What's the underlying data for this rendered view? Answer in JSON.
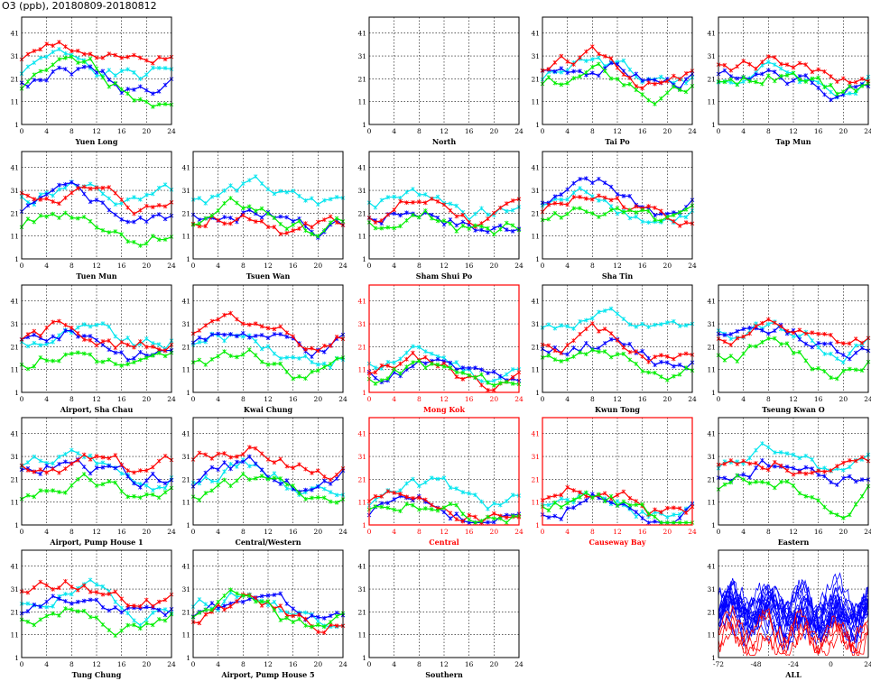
{
  "figure_title": "O3 (ppb), 20180809-20180812",
  "chart_data": {
    "type": "line",
    "grid": true,
    "y_tick_labels": [
      "1",
      "11",
      "21",
      "31",
      "41"
    ],
    "x_tick_labels": [
      "0",
      "4",
      "8",
      "12",
      "16",
      "20",
      "24"
    ],
    "all_x_tick_labels": [
      "-72",
      "-48",
      "-24",
      "0",
      "24"
    ],
    "series_colors": [
      "#00e5ee",
      "#0000ff",
      "#ff0000",
      "#00ee00"
    ],
    "panels": [
      {
        "id": "yuen-long",
        "label": "Yuen Long",
        "row": 0,
        "col": 0,
        "highlight": false,
        "has_data": true,
        "seed": 1
      },
      {
        "id": "north",
        "label": "North",
        "row": 0,
        "col": 2,
        "highlight": false,
        "has_data": false,
        "seed": 2
      },
      {
        "id": "tai-po",
        "label": "Tai Po",
        "row": 0,
        "col": 3,
        "highlight": false,
        "has_data": true,
        "seed": 3
      },
      {
        "id": "tap-mun",
        "label": "Tap Mun",
        "row": 0,
        "col": 4,
        "highlight": false,
        "has_data": true,
        "seed": 4
      },
      {
        "id": "tuen-mun",
        "label": "Tuen Mun",
        "row": 1,
        "col": 0,
        "highlight": false,
        "has_data": true,
        "seed": 5
      },
      {
        "id": "tsuen-wan",
        "label": "Tsuen Wan",
        "row": 1,
        "col": 1,
        "highlight": false,
        "has_data": true,
        "seed": 6
      },
      {
        "id": "sham-shui-po",
        "label": "Sham Shui Po",
        "row": 1,
        "col": 2,
        "highlight": false,
        "has_data": true,
        "seed": 7
      },
      {
        "id": "sha-tin",
        "label": "Sha Tin",
        "row": 1,
        "col": 3,
        "highlight": false,
        "has_data": true,
        "seed": 8
      },
      {
        "id": "airport-sha-chau",
        "label": "Airport, Sha Chau",
        "row": 2,
        "col": 0,
        "highlight": false,
        "has_data": true,
        "seed": 9
      },
      {
        "id": "kwai-chung",
        "label": "Kwai Chung",
        "row": 2,
        "col": 1,
        "highlight": false,
        "has_data": true,
        "seed": 10
      },
      {
        "id": "mong-kok",
        "label": "Mong Kok",
        "row": 2,
        "col": 2,
        "highlight": true,
        "has_data": true,
        "seed": 11
      },
      {
        "id": "kwun-tong",
        "label": "Kwun Tong",
        "row": 2,
        "col": 3,
        "highlight": false,
        "has_data": true,
        "seed": 12
      },
      {
        "id": "tseung-kwan-o",
        "label": "Tseung Kwan O",
        "row": 2,
        "col": 4,
        "highlight": false,
        "has_data": true,
        "seed": 13
      },
      {
        "id": "airport-pump-house-1",
        "label": "Airport, Pump House 1",
        "row": 3,
        "col": 0,
        "highlight": false,
        "has_data": true,
        "seed": 14
      },
      {
        "id": "central-western",
        "label": "Central/Western",
        "row": 3,
        "col": 1,
        "highlight": false,
        "has_data": true,
        "seed": 15
      },
      {
        "id": "central",
        "label": "Central",
        "row": 3,
        "col": 2,
        "highlight": true,
        "has_data": true,
        "seed": 16
      },
      {
        "id": "causeway-bay",
        "label": "Causeway Bay",
        "row": 3,
        "col": 3,
        "highlight": true,
        "has_data": true,
        "seed": 17
      },
      {
        "id": "eastern",
        "label": "Eastern",
        "row": 3,
        "col": 4,
        "highlight": false,
        "has_data": true,
        "seed": 18
      },
      {
        "id": "tung-chung",
        "label": "Tung Chung",
        "row": 4,
        "col": 0,
        "highlight": false,
        "has_data": true,
        "seed": 19
      },
      {
        "id": "airport-pump-house-5",
        "label": "Airport, Pump House 5",
        "row": 4,
        "col": 1,
        "highlight": false,
        "has_data": true,
        "seed": 20
      },
      {
        "id": "southern",
        "label": "Southern",
        "row": 4,
        "col": 2,
        "highlight": false,
        "has_data": false,
        "seed": 21
      },
      {
        "id": "all",
        "label": "ALL",
        "row": 4,
        "col": 4,
        "highlight": false,
        "has_data": true,
        "seed": 22,
        "is_all": true
      }
    ]
  }
}
